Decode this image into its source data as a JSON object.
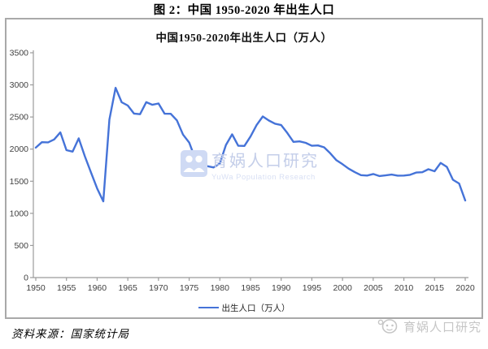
{
  "figure": {
    "caption": "图 2：中国 1950-2020 年出生人口",
    "source": "资料来源：国家统计局"
  },
  "watermark": {
    "center_title": "育娲人口研究",
    "center_subtitle": "YuWa Population Research",
    "bottom_right": "育娲人口研究"
  },
  "colors": {
    "line": "#4573d8",
    "axis": "#9b9b9b",
    "tick_text": "#3f3f3f",
    "frame_border": "#a9a9a9",
    "watermark_blue": "#cfdaf4",
    "watermark_gray": "#c6c6c6"
  },
  "chart_data": {
    "type": "line",
    "title": "中国1950-2020年出生人口（万人）",
    "legend_position": "bottom",
    "grid": false,
    "ylim": [
      0,
      3500
    ],
    "yticks": [
      0,
      500,
      1000,
      1500,
      2000,
      2500,
      3000,
      3500
    ],
    "xticks": [
      1950,
      1955,
      1960,
      1965,
      1970,
      1975,
      1980,
      1985,
      1990,
      1995,
      2000,
      2005,
      2010,
      2015,
      2020
    ],
    "x": [
      1950,
      1951,
      1952,
      1953,
      1954,
      1955,
      1956,
      1957,
      1958,
      1959,
      1960,
      1961,
      1962,
      1963,
      1964,
      1965,
      1966,
      1967,
      1968,
      1969,
      1970,
      1971,
      1972,
      1973,
      1974,
      1975,
      1976,
      1977,
      1978,
      1979,
      1980,
      1981,
      1982,
      1983,
      1984,
      1985,
      1986,
      1987,
      1988,
      1989,
      1990,
      1991,
      1992,
      1993,
      1994,
      1995,
      1996,
      1997,
      1998,
      1999,
      2000,
      2001,
      2002,
      2003,
      2004,
      2005,
      2006,
      2007,
      2008,
      2009,
      2010,
      2011,
      2012,
      2013,
      2014,
      2015,
      2016,
      2017,
      2018,
      2019,
      2020
    ],
    "series": [
      {
        "name": "出生人口（万人）",
        "color": "#4573d8",
        "values": [
          2023,
          2107,
          2105,
          2151,
          2260,
          1984,
          1961,
          2167,
          1889,
          1635,
          1389,
          1187,
          2460,
          2954,
          2729,
          2679,
          2554,
          2543,
          2731,
          2690,
          2710,
          2551,
          2550,
          2447,
          2226,
          2102,
          1849,
          1783,
          1733,
          1715,
          1776,
          2064,
          2230,
          2052,
          2050,
          2196,
          2374,
          2508,
          2445,
          2396,
          2374,
          2250,
          2113,
          2120,
          2098,
          2052,
          2057,
          2028,
          1934,
          1827,
          1765,
          1696,
          1641,
          1594,
          1588,
          1612,
          1581,
          1591,
          1604,
          1587,
          1588,
          1600,
          1635,
          1640,
          1687,
          1655,
          1786,
          1723,
          1523,
          1465,
          1200
        ]
      }
    ]
  }
}
